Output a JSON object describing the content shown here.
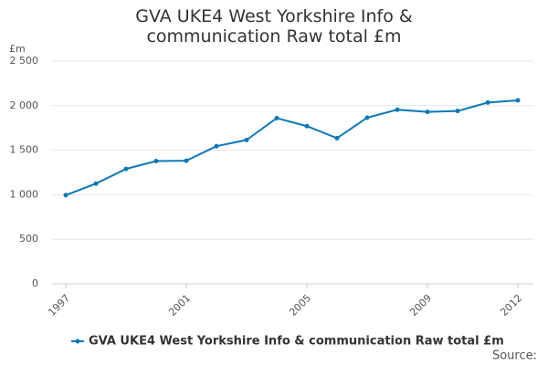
{
  "chart_data": {
    "type": "line",
    "title": "GVA UKE4 West Yorkshire Info & communication Raw total £m",
    "y_label": "£m",
    "x": [
      1997,
      1998,
      1999,
      2000,
      2001,
      2002,
      2003,
      2004,
      2005,
      2006,
      2007,
      2008,
      2009,
      2010,
      2011,
      2012
    ],
    "series": [
      {
        "name": "GVA UKE4 West Yorkshire Info & communication Raw total £m",
        "color": "#0e78b4",
        "values": [
          995,
          1125,
          1290,
          1378,
          1382,
          1545,
          1615,
          1860,
          1770,
          1635,
          1865,
          1955,
          1930,
          1940,
          2035,
          2060
        ]
      }
    ],
    "xlim": [
      1997,
      2012
    ],
    "xticks": [
      1997,
      2001,
      2005,
      2009,
      2012
    ],
    "ylim": [
      0,
      2500
    ],
    "yticks": [
      0,
      500,
      {
        "value": 1000,
        "label": "1 000"
      },
      {
        "value": 1500,
        "label": "1 500"
      },
      {
        "value": 2000,
        "label": "2 000"
      },
      {
        "value": 2500,
        "label": "2 500"
      }
    ],
    "grid": true,
    "source": "Source:"
  }
}
